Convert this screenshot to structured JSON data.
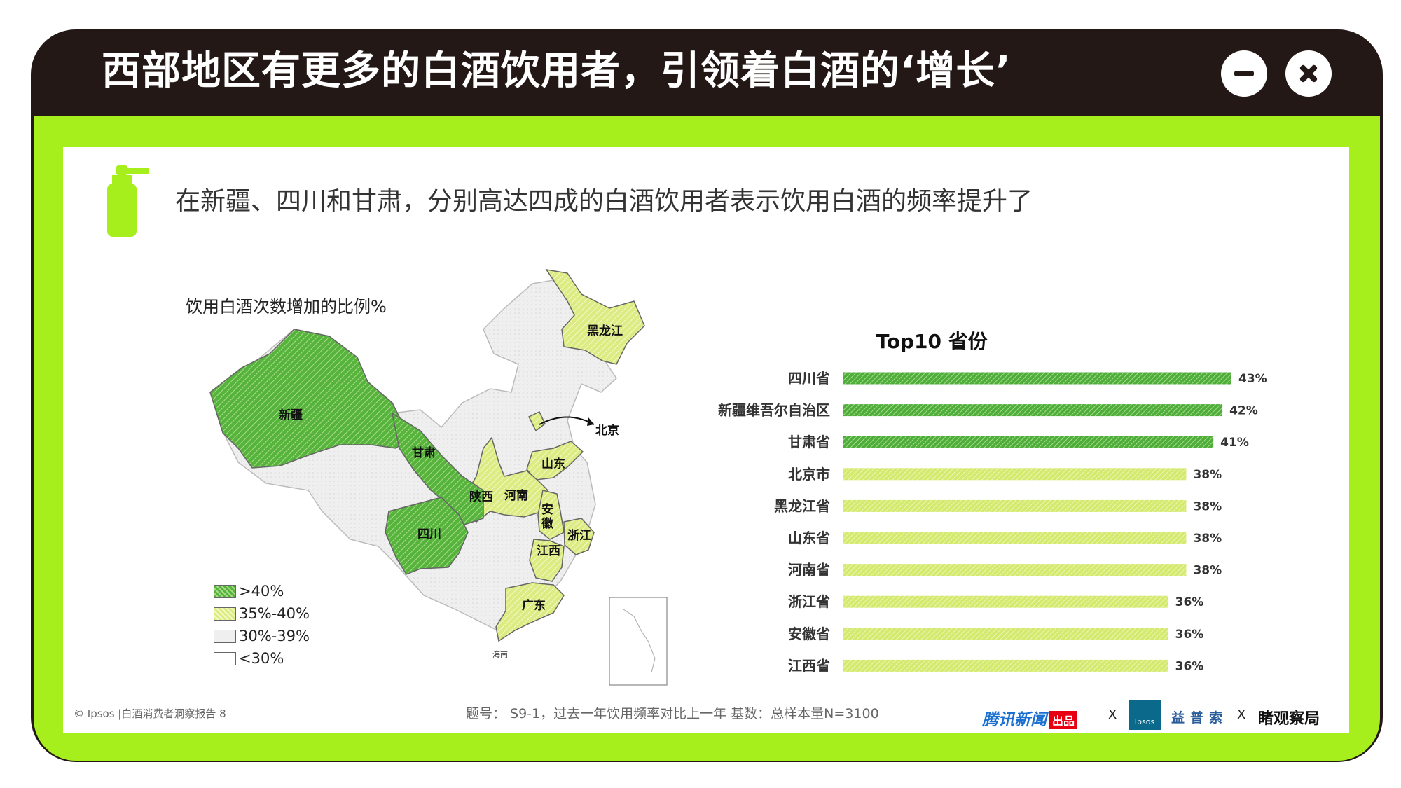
{
  "window": {
    "title": "西部地区有更多的白酒饮用者，引领着白酒的‘增长’",
    "minimize_icon": "minus-icon",
    "close_icon": "close-icon"
  },
  "subtitle": "在新疆、四川和甘肃，分别高达四成的白酒饮用者表示饮用白酒的频率提升了",
  "map": {
    "title": "饮用白酒次数增加的比例%",
    "legend": [
      {
        "label": ">40%",
        "color": "#56b33c"
      },
      {
        "label": "35%-40%",
        "color": "#dcec82"
      },
      {
        "label": "30%-39%",
        "color": "#efefef"
      },
      {
        "label": "<30%",
        "color": "#ffffff"
      }
    ],
    "labels": [
      "新疆",
      "甘肃",
      "四川",
      "陕西",
      "河南",
      "山东",
      "安",
      "徽",
      "浙江",
      "江西",
      "广东",
      "黑龙江",
      "北京",
      "海南"
    ]
  },
  "chart_data": {
    "type": "bar",
    "orientation": "horizontal",
    "title": "Top10 省份",
    "categories": [
      "四川省",
      "新疆维吾尔自治区",
      "甘肃省",
      "北京市",
      "黑龙江省",
      "山东省",
      "河南省",
      "浙江省",
      "安徽省",
      "江西省"
    ],
    "values": [
      43,
      42,
      41,
      38,
      38,
      38,
      38,
      36,
      36,
      36
    ],
    "value_labels": [
      "43%",
      "42%",
      "41%",
      "38%",
      "38%",
      "38%",
      "38%",
      "36%",
      "36%",
      "36%"
    ],
    "colors": {
      ">40%": "#4fae3a",
      "35%-40%": "#d4ea6f"
    },
    "grid": false
  },
  "footer": {
    "source": "© Ipsos |白酒消费者洞察报告   8",
    "note": "题号：  S9-1，过去一年饮用频率对比上一年    基数：总样本量N=3100",
    "logo_tencent": "腾讯新闻",
    "logo_tencent_badge": "出品",
    "x1": "X",
    "logo_ipsos": "Ipsos",
    "logo_yipusuo": "益普索",
    "x2": "X",
    "logo_observe": "睹观察局"
  }
}
